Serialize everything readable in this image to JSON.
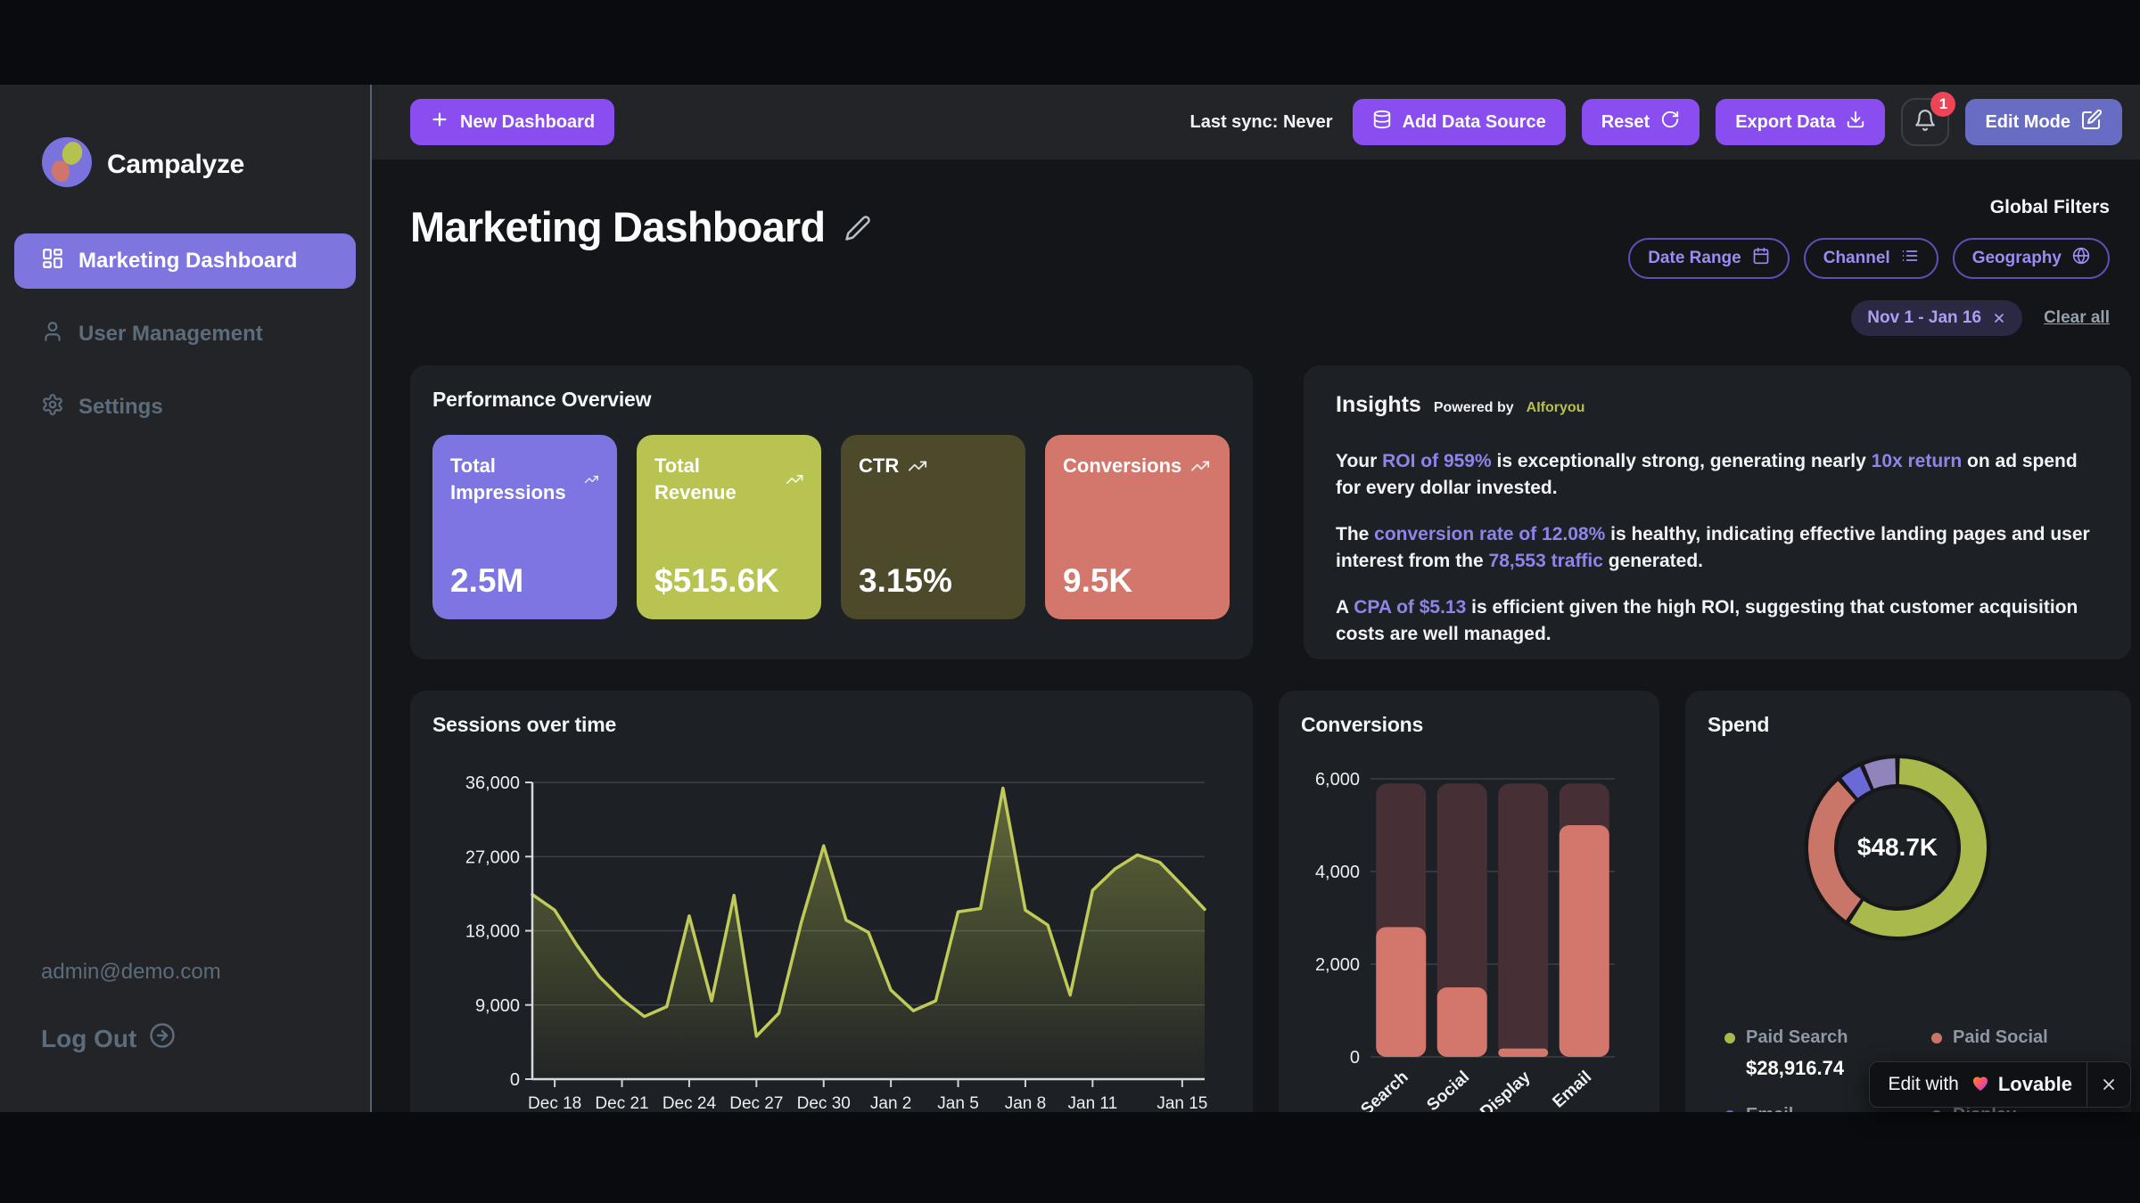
{
  "topbar": {
    "new_dashboard": "New Dashboard",
    "last_sync": "Last sync: Never",
    "add_data_source": "Add Data Source",
    "reset": "Reset",
    "export_data": "Export Data",
    "notifications_count": "1",
    "edit_mode": "Edit Mode"
  },
  "sidebar": {
    "brand": "Campalyze",
    "items": [
      {
        "label": "Marketing Dashboard",
        "active": true
      },
      {
        "label": "User Management",
        "active": false
      },
      {
        "label": "Settings",
        "active": false
      }
    ],
    "user_email": "admin@demo.com",
    "logout": "Log Out"
  },
  "main": {
    "title": "Marketing Dashboard",
    "filters": {
      "heading": "Global Filters",
      "buttons": [
        "Date Range",
        "Channel",
        "Geography"
      ],
      "active_chip": "Nov 1 - Jan 16",
      "clear_all": "Clear all"
    },
    "kpis": {
      "heading": "Performance Overview",
      "cards": [
        {
          "label": "Total Impressions",
          "value": "2.5M",
          "color": "#7d76e2",
          "spread": true
        },
        {
          "label": "Total Revenue",
          "value": "$515.6K",
          "color": "#b8c352",
          "spread": false
        },
        {
          "label": "CTR",
          "value": "3.15%",
          "color": "#4c4a2b",
          "spread": false
        },
        {
          "label": "Conversions",
          "value": "9.5K",
          "color": "#d3766b",
          "spread": false
        }
      ]
    },
    "insights": {
      "title": "Insights",
      "powered_by": "Powered by",
      "provider": "AIforyou",
      "paragraphs": [
        [
          {
            "t": "Your "
          },
          {
            "t": "ROI of 959%",
            "hl": true
          },
          {
            "t": " is exceptionally strong, generating nearly "
          },
          {
            "t": "10x return",
            "hl": true
          },
          {
            "t": " on ad spend for every dollar invested."
          }
        ],
        [
          {
            "t": "The "
          },
          {
            "t": "conversion rate of 12.08%",
            "hl": true
          },
          {
            "t": " is healthy, indicating effective landing pages and user interest from the "
          },
          {
            "t": "78,553 traffic",
            "hl": true
          },
          {
            "t": " generated."
          }
        ],
        [
          {
            "t": "A "
          },
          {
            "t": "CPA of $5.13",
            "hl": true
          },
          {
            "t": " is efficient given the high ROI, suggesting that customer acquisition costs are well managed."
          }
        ]
      ]
    }
  },
  "chart_data": [
    {
      "id": "sessions",
      "type": "area",
      "title": "Sessions over time",
      "x": [
        "Dec 17",
        "Dec 18",
        "Dec 19",
        "Dec 20",
        "Dec 21",
        "Dec 22",
        "Dec 23",
        "Dec 24",
        "Dec 25",
        "Dec 26",
        "Dec 27",
        "Dec 28",
        "Dec 29",
        "Dec 30",
        "Dec 31",
        "Jan 1",
        "Jan 2",
        "Jan 3",
        "Jan 4",
        "Jan 5",
        "Jan 6",
        "Jan 7",
        "Jan 8",
        "Jan 9",
        "Jan 10",
        "Jan 11",
        "Jan 12",
        "Jan 13",
        "Jan 14",
        "Jan 15",
        "Jan 16"
      ],
      "values": [
        22400,
        20500,
        16200,
        12400,
        9700,
        7600,
        8800,
        19800,
        9500,
        22300,
        5200,
        8000,
        19000,
        28300,
        19300,
        17800,
        10800,
        8300,
        9500,
        20300,
        20700,
        35300,
        20500,
        18700,
        10200,
        22900,
        25500,
        27200,
        26300,
        23500,
        20600
      ],
      "ylim": [
        0,
        36000
      ],
      "yticks": [
        0,
        9000,
        18000,
        27000,
        36000
      ],
      "ytick_labels": [
        "0",
        "9,000",
        "18,000",
        "27,000",
        "36,000"
      ],
      "xticks": [
        "Dec 18",
        "Dec 21",
        "Dec 24",
        "Dec 27",
        "Dec 30",
        "Jan 2",
        "Jan 5",
        "Jan 8",
        "Jan 11",
        "Jan 15"
      ],
      "line_color": "#c0ca58",
      "grid": true
    },
    {
      "id": "conversions",
      "type": "bar",
      "title": "Conversions",
      "categories": [
        "Search",
        "Social",
        "Display",
        "Email"
      ],
      "values": [
        2800,
        1500,
        180,
        5000
      ],
      "track_value": 5900,
      "ylim": [
        0,
        6000
      ],
      "yticks": [
        0,
        2000,
        4000,
        6000
      ],
      "ytick_labels": [
        "0",
        "2,000",
        "4,000",
        "6,000"
      ],
      "bar_color": "#d3766b",
      "track_color": "#463035",
      "grid": true
    },
    {
      "id": "spend",
      "type": "donut",
      "title": "Spend",
      "center_label": "$48.7K",
      "segments": [
        {
          "name": "Paid Search",
          "pct": 59.4,
          "color": "#a9b94c",
          "value_label": "$28,916.74"
        },
        {
          "name": "Paid Social",
          "pct": 29.4,
          "color": "#c97568",
          "value_label": ""
        },
        {
          "name": "Email",
          "pct": 4.7,
          "color": "#6b68d8",
          "value_label": ""
        },
        {
          "name": "Display",
          "pct": 6.5,
          "color": "#9184bb",
          "value_label": ""
        }
      ],
      "legend_position": "bottom"
    }
  ],
  "lovable": {
    "edit_with": "Edit with",
    "brand": "Lovable"
  }
}
